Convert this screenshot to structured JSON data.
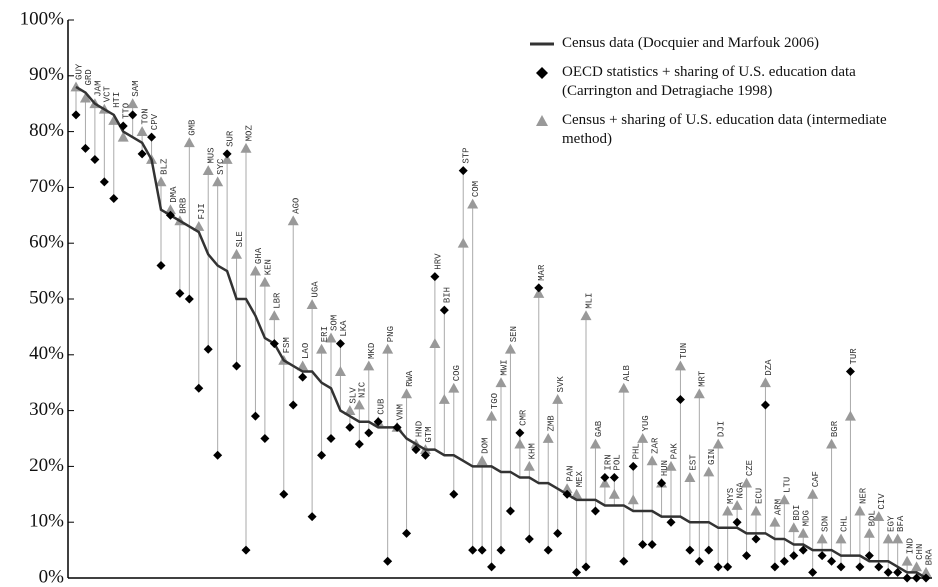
{
  "chart_data": {
    "type": "line-dot",
    "categories": [
      "GUY",
      "GRD",
      "JAM",
      "VCT",
      "HTI",
      "TTO",
      "SAM",
      "TON",
      "CPV",
      "BLZ",
      "DMA",
      "BRB",
      "GMB",
      "FJI",
      "MUS",
      "SYC",
      "SUR",
      "SLE",
      "MOZ",
      "GHA",
      "KEN",
      "LBR",
      "FSM",
      "AGO",
      "LAO",
      "UGA",
      "ERI",
      "SOM",
      "LKA",
      "SLV",
      "NIC",
      "MKD",
      "CUB",
      "PNG",
      "VNM",
      "RWA",
      "HND",
      "GTM",
      "HRV",
      "BIH",
      "COG",
      "STP",
      "COM",
      "DOM",
      "TGO",
      "MWI",
      "SEN",
      "CMR",
      "KHM",
      "MAR",
      "ZMB",
      "SVK",
      "PAN",
      "MEX",
      "MLI",
      "GAB",
      "IRN",
      "POL",
      "ALB",
      "PHL",
      "YUG",
      "ZAR",
      "HUN",
      "PAK",
      "TUN",
      "EST",
      "MRT",
      "GIN",
      "DJI",
      "MYS",
      "NGA",
      "CZE",
      "ECU",
      "DZA",
      "ARM",
      "LTU",
      "BDI",
      "MDG",
      "CAF",
      "SDN",
      "BGR",
      "CHL",
      "TUR",
      "NER",
      "BOL",
      "CIV",
      "EGY",
      "BFA",
      "IND",
      "CHN",
      "BRA"
    ],
    "series": [
      {
        "name": "Census data (Docquier and Marfouk 2006)",
        "color": "#333333",
        "marker": "line",
        "values": [
          88,
          87,
          85,
          84,
          83,
          80,
          79,
          78,
          75,
          66,
          65,
          64,
          63,
          62,
          58,
          56,
          55,
          50,
          50,
          47,
          43,
          42,
          39,
          38,
          37,
          37,
          35,
          34,
          30,
          29,
          28,
          28,
          27,
          27,
          27,
          25,
          24,
          23,
          23,
          22,
          22,
          21,
          20,
          20,
          20,
          19,
          19,
          18,
          18,
          17,
          17,
          16,
          15,
          14,
          14,
          14,
          13,
          13,
          13,
          12,
          12,
          12,
          11,
          11,
          11,
          10,
          10,
          10,
          9,
          9,
          9,
          8,
          8,
          8,
          7,
          7,
          6,
          6,
          5,
          5,
          5,
          4,
          4,
          4,
          3,
          3,
          3,
          2,
          1,
          1,
          0
        ]
      },
      {
        "name": "OECD statistics + sharing of U.S. education data (Carrington and Detragiache 1998)",
        "color": "#000000",
        "marker": "diamond",
        "values": [
          83,
          77,
          75,
          71,
          68,
          81,
          83,
          76,
          79,
          56,
          65,
          51,
          50,
          34,
          41,
          22,
          76,
          38,
          5,
          29,
          25,
          42,
          15,
          31,
          36,
          11,
          22,
          25,
          42,
          27,
          24,
          26,
          28,
          3,
          27,
          8,
          23,
          22,
          54,
          48,
          15,
          73,
          5,
          5,
          2,
          5,
          12,
          26,
          7,
          52,
          5,
          8,
          15,
          1,
          2,
          12,
          18,
          18,
          3,
          20,
          6,
          6,
          17,
          10,
          32,
          5,
          3,
          5,
          2,
          2,
          10,
          4,
          7,
          31,
          2,
          3,
          4,
          5,
          1,
          4,
          3,
          2,
          37,
          2,
          4,
          2,
          1,
          1,
          0,
          0,
          0
        ]
      },
      {
        "name": "Census + sharing of U.S. education data (intermediate method)",
        "color": "#999999",
        "marker": "triangle",
        "values": [
          88,
          86,
          85,
          84,
          82,
          79,
          85,
          80,
          75,
          71,
          66,
          64,
          78,
          63,
          73,
          71,
          75,
          58,
          77,
          55,
          53,
          47,
          39,
          64,
          38,
          49,
          41,
          43,
          37,
          30,
          31,
          38,
          28,
          41,
          27,
          33,
          24,
          23,
          42,
          32,
          34,
          60,
          67,
          21,
          29,
          35,
          41,
          24,
          20,
          51,
          25,
          32,
          16,
          15,
          47,
          24,
          17,
          15,
          34,
          14,
          25,
          21,
          17,
          20,
          38,
          18,
          33,
          19,
          24,
          12,
          13,
          17,
          12,
          35,
          10,
          14,
          9,
          8,
          15,
          7,
          24,
          7,
          29,
          12,
          8,
          11,
          7,
          7,
          3,
          2,
          1
        ]
      }
    ],
    "ylim": [
      0,
      100
    ],
    "yticks": [
      {
        "value": 0,
        "label": "0%"
      },
      {
        "value": 10,
        "label": "10%"
      },
      {
        "value": 20,
        "label": "20%"
      },
      {
        "value": 30,
        "label": "30%"
      },
      {
        "value": 40,
        "label": "40%"
      },
      {
        "value": 50,
        "label": "50%"
      },
      {
        "value": 60,
        "label": "60%"
      },
      {
        "value": 70,
        "label": "70%"
      },
      {
        "value": 80,
        "label": "80%"
      },
      {
        "value": 90,
        "label": "90%"
      },
      {
        "value": 100,
        "label": "100%"
      }
    ]
  }
}
